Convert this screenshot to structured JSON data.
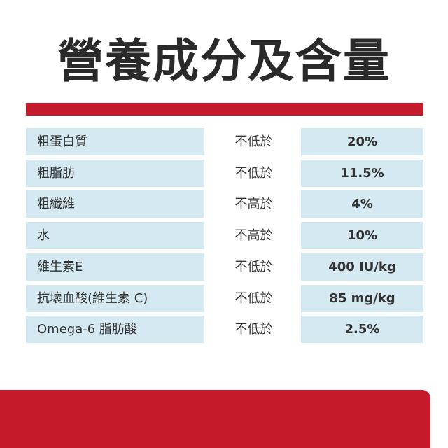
{
  "header": {
    "title": "營養成分及含量"
  },
  "table": {
    "rows": [
      [
        "粗蛋白質",
        "不低於",
        "20%"
      ],
      [
        "粗脂肪",
        "不低於",
        "11.5%"
      ],
      [
        "粗纖維",
        "不高於",
        "4%"
      ],
      [
        "水",
        "不高於",
        "10%"
      ],
      [
        "維生素E",
        "不低於",
        "400 IU/kg"
      ],
      [
        "抗壞血酸(維生素 C)",
        "不低於",
        "85 mg/kg"
      ],
      [
        "Omega-6 脂肪酸",
        "不低於",
        "2.5%"
      ]
    ]
  }
}
